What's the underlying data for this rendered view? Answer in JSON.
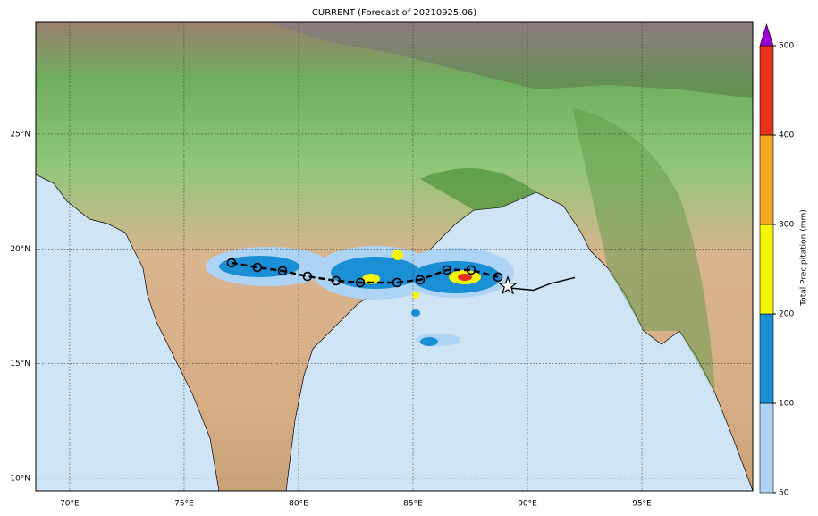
{
  "map": {
    "title": "CURRENT (Forecast of 20210925.06)",
    "xlim": [
      68.52,
      99.84
    ],
    "ylim": [
      9.45,
      29.87
    ],
    "xticks": [
      {
        "value": 70,
        "label": "70°E"
      },
      {
        "value": 75,
        "label": "75°E"
      },
      {
        "value": 80,
        "label": "80°E"
      },
      {
        "value": 85,
        "label": "85°E"
      },
      {
        "value": 90,
        "label": "90°E"
      },
      {
        "value": 95,
        "label": "95°E"
      }
    ],
    "yticks": [
      {
        "value": 10,
        "label": "10°N"
      },
      {
        "value": 15,
        "label": "15°N"
      },
      {
        "value": 20,
        "label": "20°N"
      },
      {
        "value": 25,
        "label": "25°N"
      }
    ],
    "grid": true,
    "forecast_track": {
      "x": [
        77.07,
        78.2,
        79.3,
        80.39,
        81.64,
        82.7,
        84.3,
        85.31,
        86.48,
        87.54,
        88.71
      ],
      "y": [
        19.39,
        19.19,
        19.04,
        18.8,
        18.61,
        18.53,
        18.53,
        18.65,
        19.08,
        19.08,
        18.77
      ],
      "color": "#000000"
    },
    "current_position": {
      "x": 89.14,
      "y": 18.38
    },
    "past_track": {
      "x": [
        89.14,
        90.27,
        90.98,
        92.07
      ],
      "y": [
        18.3,
        18.2,
        18.48,
        18.75
      ],
      "color": "#000000"
    },
    "colorbar": {
      "label": "Total Precipitation (mm)",
      "levels": [
        50,
        100,
        200,
        300,
        400,
        500
      ],
      "colors": [
        "#aed4f5",
        "#1a8fd6",
        "#f5f50a",
        "#f5a623",
        "#e8321e"
      ],
      "extend_color": "#9b00d6"
    }
  }
}
